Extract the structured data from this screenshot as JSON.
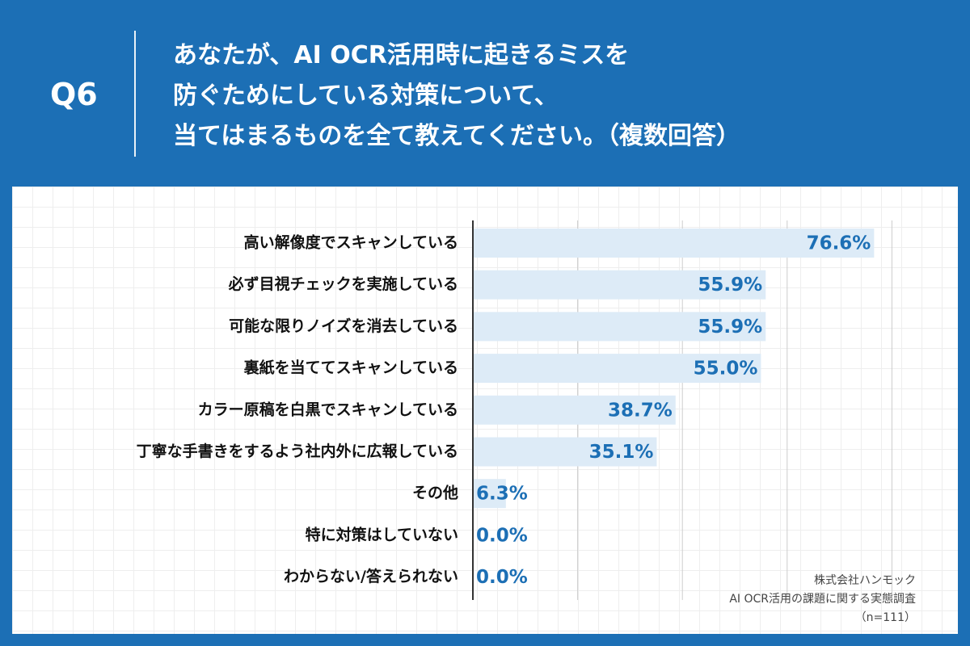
{
  "header": {
    "question_number": "Q6",
    "question_lines": [
      "あなたが、AI OCR活用時に起きるミスを",
      "防ぐためにしている対策について、",
      "当てはまるものを全て教えてください。（複数回答）"
    ]
  },
  "chart_data": {
    "type": "bar",
    "orientation": "horizontal",
    "categories": [
      "高い解像度でスキャンしている",
      "必ず目視チェックを実施している",
      "可能な限りノイズを消去している",
      "裏紙を当ててスキャンしている",
      "カラー原稿を白黒でスキャンしている",
      "丁寧な手書きをするよう社内外に広報している",
      "その他",
      "特に対策はしていない",
      "わからない/答えられない"
    ],
    "values": [
      76.6,
      55.9,
      55.9,
      55.0,
      38.7,
      35.1,
      6.3,
      0.0,
      0.0
    ],
    "value_labels": [
      "76.6%",
      "55.9%",
      "55.9%",
      "55.0%",
      "38.7%",
      "35.1%",
      "6.3%",
      "0.0%",
      "0.0%"
    ],
    "xlim": [
      0,
      100
    ],
    "grid_step": 20,
    "unit": "%",
    "colors": {
      "bar": "#ddebf7",
      "value_text": "#1c6fb5",
      "grid": "#cccccc",
      "axis": "#333333"
    }
  },
  "source": {
    "company": "株式会社ハンモック",
    "survey": "AI OCR活用の課題に関する実態調査",
    "sample": "（n=111）"
  }
}
